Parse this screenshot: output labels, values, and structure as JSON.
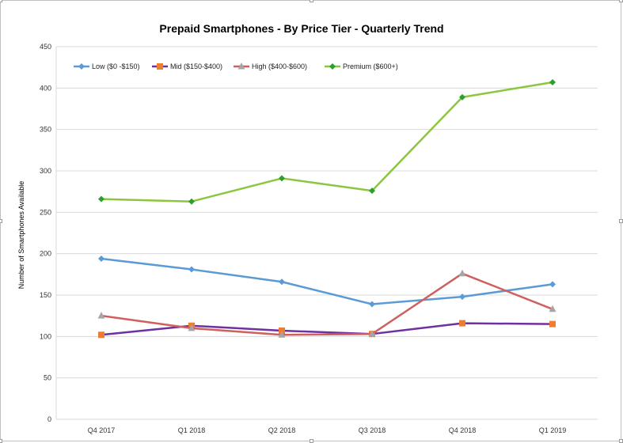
{
  "chart_data": {
    "type": "line",
    "title": "Prepaid Smartphones - By Price Tier - Quarterly  Trend",
    "xlabel": "",
    "ylabel": "Number of Smartphones Available",
    "categories": [
      "Q4 2017",
      "Q1 2018",
      "Q2 2018",
      "Q3 2018",
      "Q4 2018",
      "Q1 2019"
    ],
    "ylim": [
      0,
      450
    ],
    "yticks": [
      0,
      50,
      100,
      150,
      200,
      250,
      300,
      350,
      400,
      450
    ],
    "grid": true,
    "legend_position": "top-left",
    "series": [
      {
        "name": "Low ($0 -$150)",
        "color": "#5b9bd5",
        "marker": "diamond",
        "values": [
          194,
          181,
          166,
          139,
          148,
          163
        ]
      },
      {
        "name": "Mid ($150-$400)",
        "color": "#7030a0",
        "marker": "square",
        "marker_color": "#ed7d31",
        "values": [
          102,
          113,
          107,
          103,
          116,
          115
        ]
      },
      {
        "name": "High ($400-$600)",
        "color": "#d0605e",
        "marker": "triangle",
        "marker_color": "#a5a5a5",
        "values": [
          125,
          110,
          102,
          103,
          176,
          133
        ]
      },
      {
        "name": "Premium ($600+)",
        "color": "#8cc63f",
        "marker": "diamond",
        "marker_color": "#2ca02c",
        "values": [
          266,
          263,
          291,
          276,
          389,
          407
        ]
      }
    ]
  }
}
